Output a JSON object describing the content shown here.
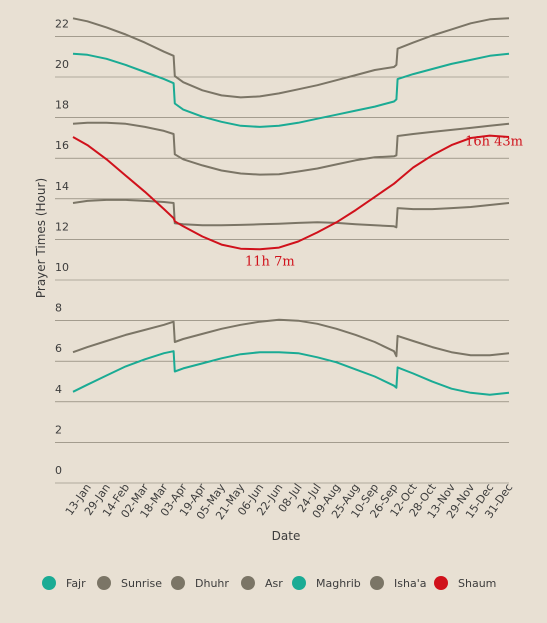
{
  "chart_data": {
    "type": "line",
    "xlabel": "Date",
    "ylabel": "Prayer Times (Hour)",
    "ylim": [
      0,
      23
    ],
    "yticks": [
      0,
      2,
      4,
      6,
      8,
      10,
      12,
      14,
      16,
      18,
      20,
      22
    ],
    "x_tick_labels": [
      "13-Jan",
      "29-Jan",
      "14-Feb",
      "02-Mar",
      "18-Mar",
      "03-Apr",
      "19-Apr",
      "05-May",
      "21-May",
      "06-Jun",
      "22-Jun",
      "08-Jul",
      "24-Jul",
      "09-Aug",
      "25-Aug",
      "10-Sep",
      "26-Sep",
      "12-Oct",
      "28-Oct",
      "13-Nov",
      "29-Nov",
      "15-Dec",
      "31-Dec"
    ],
    "x": [
      "01-Jan",
      "13-Jan",
      "29-Jan",
      "14-Feb",
      "02-Mar",
      "18-Mar",
      "26-Mar",
      "27-Mar",
      "03-Apr",
      "19-Apr",
      "05-May",
      "21-May",
      "06-Jun",
      "22-Jun",
      "08-Jul",
      "24-Jul",
      "09-Aug",
      "25-Aug",
      "10-Sep",
      "26-Sep",
      "28-Sep",
      "29-Sep",
      "12-Oct",
      "28-Oct",
      "13-Nov",
      "29-Nov",
      "15-Dec",
      "31-Dec"
    ],
    "grid": true,
    "legend_position": "bottom",
    "series": [
      {
        "name": "Fajr",
        "color": "#1aab94",
        "values": [
          4.1,
          4.45,
          4.9,
          5.35,
          5.7,
          6.0,
          6.1,
          5.1,
          5.25,
          5.5,
          5.75,
          5.95,
          6.05,
          6.05,
          6.0,
          5.8,
          5.55,
          5.2,
          4.85,
          4.4,
          4.3,
          5.3,
          5.0,
          4.6,
          4.25,
          4.05,
          3.95,
          4.05
        ]
      },
      {
        "name": "Sunrise",
        "color": "#7b7566",
        "values": [
          6.05,
          6.3,
          6.6,
          6.9,
          7.15,
          7.4,
          7.55,
          6.55,
          6.7,
          6.95,
          7.2,
          7.4,
          7.55,
          7.65,
          7.6,
          7.45,
          7.2,
          6.9,
          6.55,
          6.1,
          5.85,
          6.85,
          6.6,
          6.3,
          6.05,
          5.9,
          5.9,
          6.0
        ]
      },
      {
        "name": "Dhuhr",
        "color": "#7b7566",
        "values": [
          13.4,
          13.5,
          13.55,
          13.55,
          13.5,
          13.45,
          13.4,
          12.4,
          12.35,
          12.3,
          12.3,
          12.32,
          12.35,
          12.38,
          12.42,
          12.45,
          12.42,
          12.35,
          12.3,
          12.25,
          12.2,
          13.15,
          13.1,
          13.1,
          13.15,
          13.2,
          13.3,
          13.4
        ]
      },
      {
        "name": "Asr",
        "color": "#7b7566",
        "values": [
          17.3,
          17.35,
          17.35,
          17.3,
          17.15,
          16.95,
          16.8,
          15.8,
          15.55,
          15.25,
          15.0,
          14.85,
          14.8,
          14.82,
          14.95,
          15.1,
          15.3,
          15.5,
          15.65,
          15.7,
          15.75,
          16.7,
          16.8,
          16.9,
          17.0,
          17.1,
          17.2,
          17.3
        ]
      },
      {
        "name": "Maghrib",
        "color": "#1aab94",
        "values": [
          20.75,
          20.7,
          20.5,
          20.2,
          19.85,
          19.5,
          19.3,
          18.3,
          18.0,
          17.65,
          17.4,
          17.2,
          17.15,
          17.2,
          17.35,
          17.55,
          17.75,
          17.95,
          18.15,
          18.4,
          18.5,
          19.5,
          19.75,
          20.0,
          20.25,
          20.45,
          20.65,
          20.75
        ]
      },
      {
        "name": "Isha'a",
        "color": "#7b7566",
        "values": [
          22.5,
          22.35,
          22.05,
          21.7,
          21.3,
          20.85,
          20.65,
          19.65,
          19.35,
          18.95,
          18.7,
          18.6,
          18.65,
          18.8,
          19.0,
          19.2,
          19.45,
          19.7,
          19.95,
          20.1,
          20.2,
          21.0,
          21.3,
          21.65,
          21.95,
          22.25,
          22.45,
          22.5
        ]
      },
      {
        "name": "Shaum",
        "color": "#d0111b",
        "values": [
          16.65,
          16.25,
          15.55,
          14.75,
          13.95,
          13.1,
          12.65,
          12.5,
          12.25,
          11.75,
          11.35,
          11.15,
          11.12,
          11.2,
          11.5,
          11.95,
          12.45,
          13.05,
          13.7,
          14.35,
          14.45,
          14.5,
          15.15,
          15.75,
          16.25,
          16.6,
          16.72,
          16.65
        ]
      }
    ],
    "annotations": [
      {
        "text": "16h 43m",
        "x": "31-Dec",
        "y": 16.72
      },
      {
        "text": "11h 7m",
        "x": "06-Jun",
        "y": 11.12
      }
    ]
  }
}
